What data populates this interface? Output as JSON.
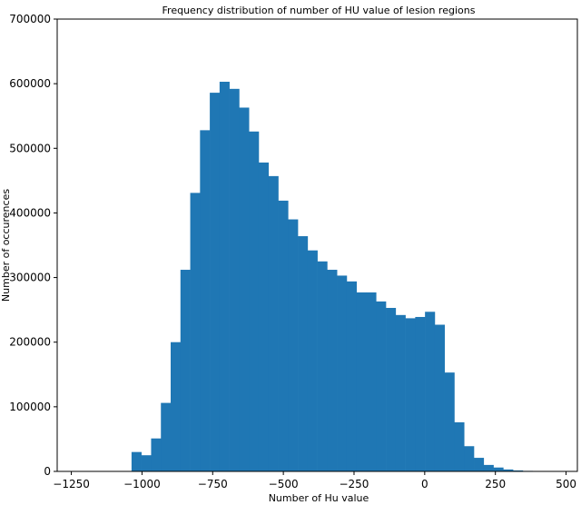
{
  "chart_data": {
    "type": "bar",
    "title": "Frequency distribution of number of HU value of lesion regions",
    "xlabel": "Number of Hu value",
    "ylabel": "Number of occurences",
    "xlim": [
      -1300,
      540
    ],
    "ylim": [
      0,
      700000
    ],
    "xticks": [
      -1250,
      -1000,
      -750,
      -500,
      -250,
      0,
      250,
      500
    ],
    "xtick_labels": [
      "−1250",
      "−1000",
      "−750",
      "−500",
      "−250",
      "0",
      "250",
      "500"
    ],
    "yticks": [
      0,
      100000,
      200000,
      300000,
      400000,
      500000,
      600000,
      700000
    ],
    "ytick_labels": [
      "0",
      "100000",
      "200000",
      "300000",
      "400000",
      "500000",
      "600000",
      "700000"
    ],
    "bin_width": 34.6,
    "bin_starts": [
      -1037,
      -1002.4,
      -967.8,
      -933.2,
      -898.6,
      -864,
      -829.4,
      -794.8,
      -760.2,
      -725.6,
      -691,
      -656.4,
      -621.8,
      -587.2,
      -552.6,
      -518,
      -483.4,
      -448.8,
      -414.2,
      -379.6,
      -345,
      -310.4,
      -275.8,
      -241.2,
      -206.6,
      -172,
      -137.4,
      -102.8,
      -68.2,
      -33.6,
      1,
      35.6,
      70.2,
      104.8,
      139.4,
      174,
      208.6,
      243.2,
      277.8,
      312.4,
      347
    ],
    "values": [
      30000,
      25000,
      51000,
      106000,
      200000,
      312000,
      431000,
      528000,
      586000,
      603000,
      592000,
      563000,
      526000,
      478000,
      457000,
      419000,
      390000,
      364000,
      342000,
      325000,
      312000,
      303000,
      294000,
      277000,
      277000,
      263000,
      253000,
      242000,
      237000,
      239000,
      247000,
      227000,
      153000,
      76000,
      39000,
      21000,
      10000,
      6000,
      3000,
      1500,
      800
    ],
    "bar_color": "#1f77b4",
    "grid": false,
    "legend": "none"
  }
}
